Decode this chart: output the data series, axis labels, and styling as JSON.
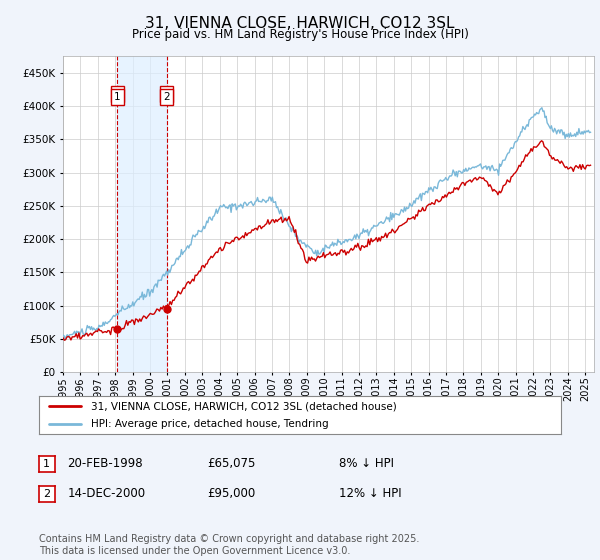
{
  "title": "31, VIENNA CLOSE, HARWICH, CO12 3SL",
  "subtitle": "Price paid vs. HM Land Registry's House Price Index (HPI)",
  "title_fontsize": 11,
  "subtitle_fontsize": 8.5,
  "ylim": [
    0,
    475000
  ],
  "yticks": [
    0,
    50000,
    100000,
    150000,
    200000,
    250000,
    300000,
    350000,
    400000,
    450000
  ],
  "xlim_start": 1995.0,
  "xlim_end": 2025.5,
  "hpi_color": "#7ab8d9",
  "price_color": "#cc0000",
  "annotation_box_color": "#cc0000",
  "shade_color": "#ddeeff",
  "background_color": "#f0f4fb",
  "plot_bg_color": "#ffffff",
  "grid_color": "#cccccc",
  "legend_label_price": "31, VIENNA CLOSE, HARWICH, CO12 3SL (detached house)",
  "legend_label_hpi": "HPI: Average price, detached house, Tendring",
  "transaction1_date": "20-FEB-1998",
  "transaction1_price": "£65,075",
  "transaction1_rel": "8% ↓ HPI",
  "transaction1_year": 1998.13,
  "transaction1_value": 65075,
  "transaction2_date": "14-DEC-2000",
  "transaction2_price": "£95,000",
  "transaction2_rel": "12% ↓ HPI",
  "transaction2_year": 2000.96,
  "transaction2_value": 95000,
  "footer": "Contains HM Land Registry data © Crown copyright and database right 2025.\nThis data is licensed under the Open Government Licence v3.0.",
  "footer_fontsize": 7.0
}
